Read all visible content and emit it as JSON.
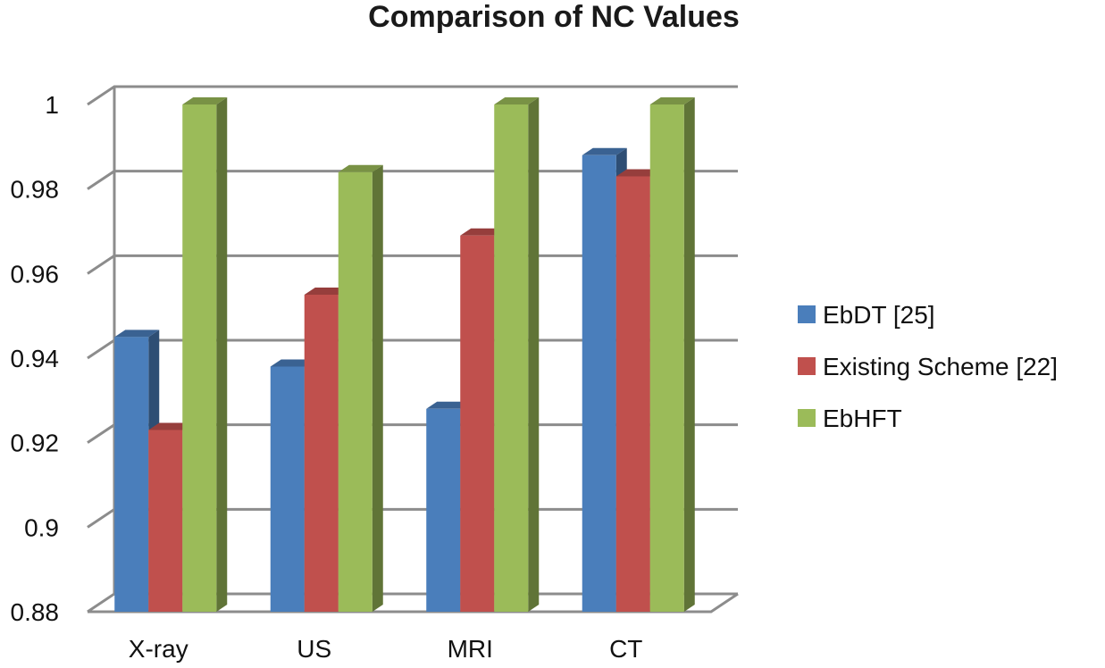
{
  "chart_data": {
    "type": "bar",
    "title": "Comparison of NC Values",
    "categories": [
      "X-ray",
      "US",
      "MRI",
      "CT"
    ],
    "series": [
      {
        "name": "EbDT [25]",
        "color": "#4a7ebb",
        "values": [
          0.945,
          0.938,
          0.928,
          0.988
        ]
      },
      {
        "name": "Existing Scheme [22]",
        "color": "#c0504d",
        "values": [
          0.923,
          0.955,
          0.969,
          0.983
        ]
      },
      {
        "name": "EbHFT",
        "color": "#9bbb59",
        "values": [
          1.0,
          0.984,
          1.0,
          1.0
        ]
      }
    ],
    "yticks": [
      "0.88",
      "0.9",
      "0.92",
      "0.94",
      "0.96",
      "0.98",
      "1"
    ],
    "ylim": [
      0.88,
      1.0
    ],
    "xlabel": "",
    "ylabel": "",
    "legend_position": "right",
    "grid": true
  }
}
